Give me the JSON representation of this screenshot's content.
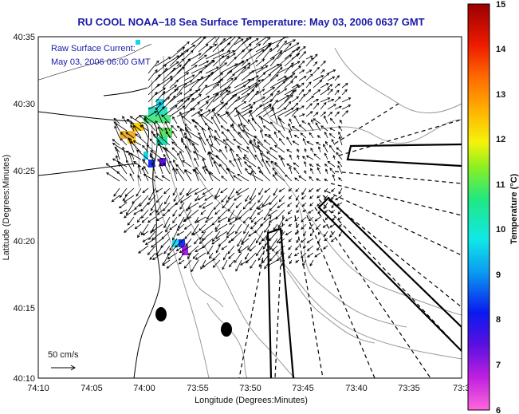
{
  "title": "RU COOL  NOAA–18  Sea Surface Temperature:  May 03, 2006 0637 GMT",
  "legend": {
    "line1": "Raw Surface Current:",
    "line2": "May 03, 2006 06:00 GMT",
    "scale_label": "50 cm/s"
  },
  "axes": {
    "xlabel": "Longitude (Degrees:Minutes)",
    "ylabel": "Latitude (Degrees:Minutes)",
    "xticks": [
      "74:10",
      "74:05",
      "74:00",
      "73:55",
      "73:50",
      "73:45",
      "73:40",
      "73:35",
      "73:3"
    ],
    "yticks": [
      "40:35",
      "40:30",
      "40:25",
      "40:20",
      "40:15",
      "40:10"
    ]
  },
  "colorbar": {
    "label": "Temperature (°C)",
    "ticks": [
      "15",
      "14",
      "13",
      "12",
      "11",
      "10",
      "9",
      "8",
      "7",
      "6"
    ],
    "range": [
      6,
      15
    ]
  },
  "colors": {
    "title": "#1a1aa8",
    "legend_text": "#1a1aa8",
    "contour": "#9a9a9a",
    "vectors": "#000000"
  }
}
